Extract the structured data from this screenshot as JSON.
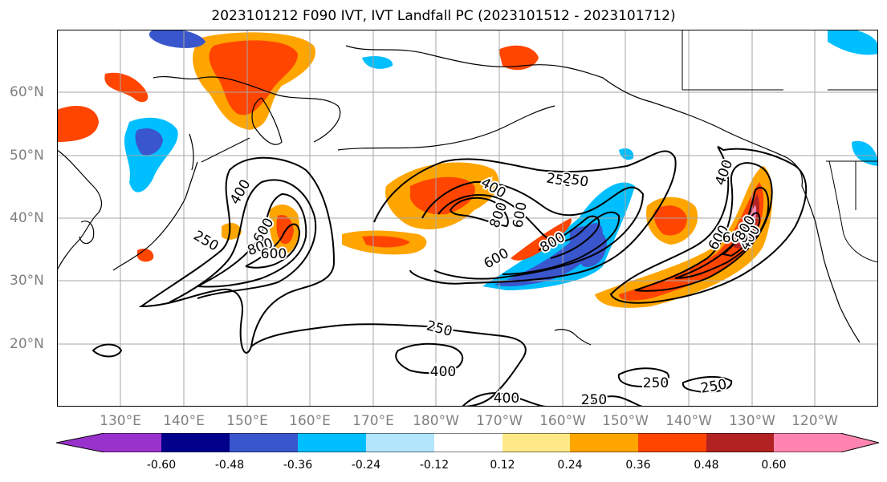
{
  "title": "2023101212 F090 IVT, IVT Landfall PC (2023101512 - 2023101712)",
  "map": {
    "lon_labels": [
      "130°E",
      "140°E",
      "150°E",
      "160°E",
      "170°E",
      "180°W",
      "170°W",
      "160°W",
      "150°W",
      "140°W",
      "130°W",
      "120°W"
    ],
    "lat_labels": [
      "20°N",
      "30°N",
      "40°N",
      "50°N",
      "60°N"
    ],
    "grid": true,
    "contour_labels": [
      "250",
      "400",
      "600",
      "800",
      "600",
      "400",
      "250",
      "600",
      "800",
      "600",
      "800",
      "250",
      "400",
      "600",
      "400",
      "600",
      "800",
      "250",
      "400",
      "250",
      "400",
      "250",
      "250",
      "250"
    ],
    "shading_colors": {
      "neg_strong": "#3a56cc",
      "neg_mid": "#00bfff",
      "neg_weak": "#b3e5fc",
      "pos_weak": "#ffe987",
      "pos_mid": "#ffa500",
      "pos_strong": "#ff4500",
      "pos_max": "#b22222",
      "pos_extreme": "#ff85b0"
    }
  },
  "colorbar": {
    "colors": [
      "#9932cc",
      "#9932cc",
      "#00008b",
      "#3a56cc",
      "#00bfff",
      "#b3e5fc",
      "#ffffff",
      "#ffe987",
      "#ffa500",
      "#ff4500",
      "#b22222",
      "#ff85b0",
      "#ff85b0"
    ],
    "tick_labels": [
      "-0.60",
      "-0.48",
      "-0.36",
      "-0.24",
      "-0.12",
      "0.12",
      "0.24",
      "0.36",
      "0.48",
      "0.60"
    ]
  }
}
